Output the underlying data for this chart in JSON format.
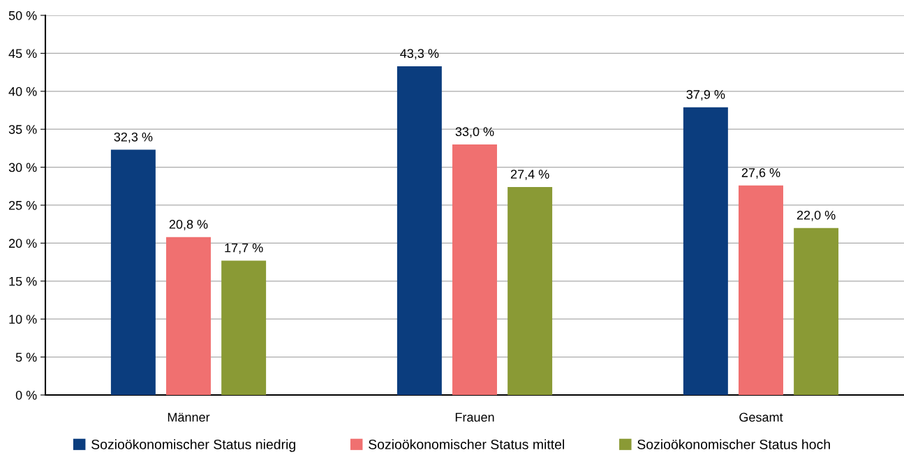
{
  "chart_data": {
    "type": "bar",
    "categories": [
      "Männer",
      "Frauen",
      "Gesamt"
    ],
    "series": [
      {
        "name": "Sozioökonomischer Status niedrig",
        "color": "#0b3d7e",
        "values": [
          32.3,
          43.3,
          37.9
        ],
        "value_labels": [
          "32,3 %",
          "43,3 %",
          "37,9 %"
        ]
      },
      {
        "name": "Sozioökonomischer Status mittel",
        "color": "#f07070",
        "values": [
          20.8,
          33.0,
          27.6
        ],
        "value_labels": [
          "20,8 %",
          "33,0 %",
          "27,6 %"
        ]
      },
      {
        "name": "Sozioökonomischer Status hoch",
        "color": "#8a9a35",
        "values": [
          17.7,
          27.4,
          22.0
        ],
        "value_labels": [
          "17,7 %",
          "27,4 %",
          "22,0 %"
        ]
      }
    ],
    "ylim": [
      0,
      50
    ],
    "yticks": [
      {
        "value": 0,
        "label": "0 %"
      },
      {
        "value": 5,
        "label": "5 %"
      },
      {
        "value": 10,
        "label": "10 %"
      },
      {
        "value": 15,
        "label": "15 %"
      },
      {
        "value": 20,
        "label": "20 %"
      },
      {
        "value": 25,
        "label": "25 %"
      },
      {
        "value": 30,
        "label": "30 %"
      },
      {
        "value": 35,
        "label": "35 %"
      },
      {
        "value": 40,
        "label": "40 %"
      },
      {
        "value": 45,
        "label": "45 %"
      },
      {
        "value": 50,
        "label": "50 %"
      }
    ],
    "grid": "y",
    "legend": "bottom"
  }
}
